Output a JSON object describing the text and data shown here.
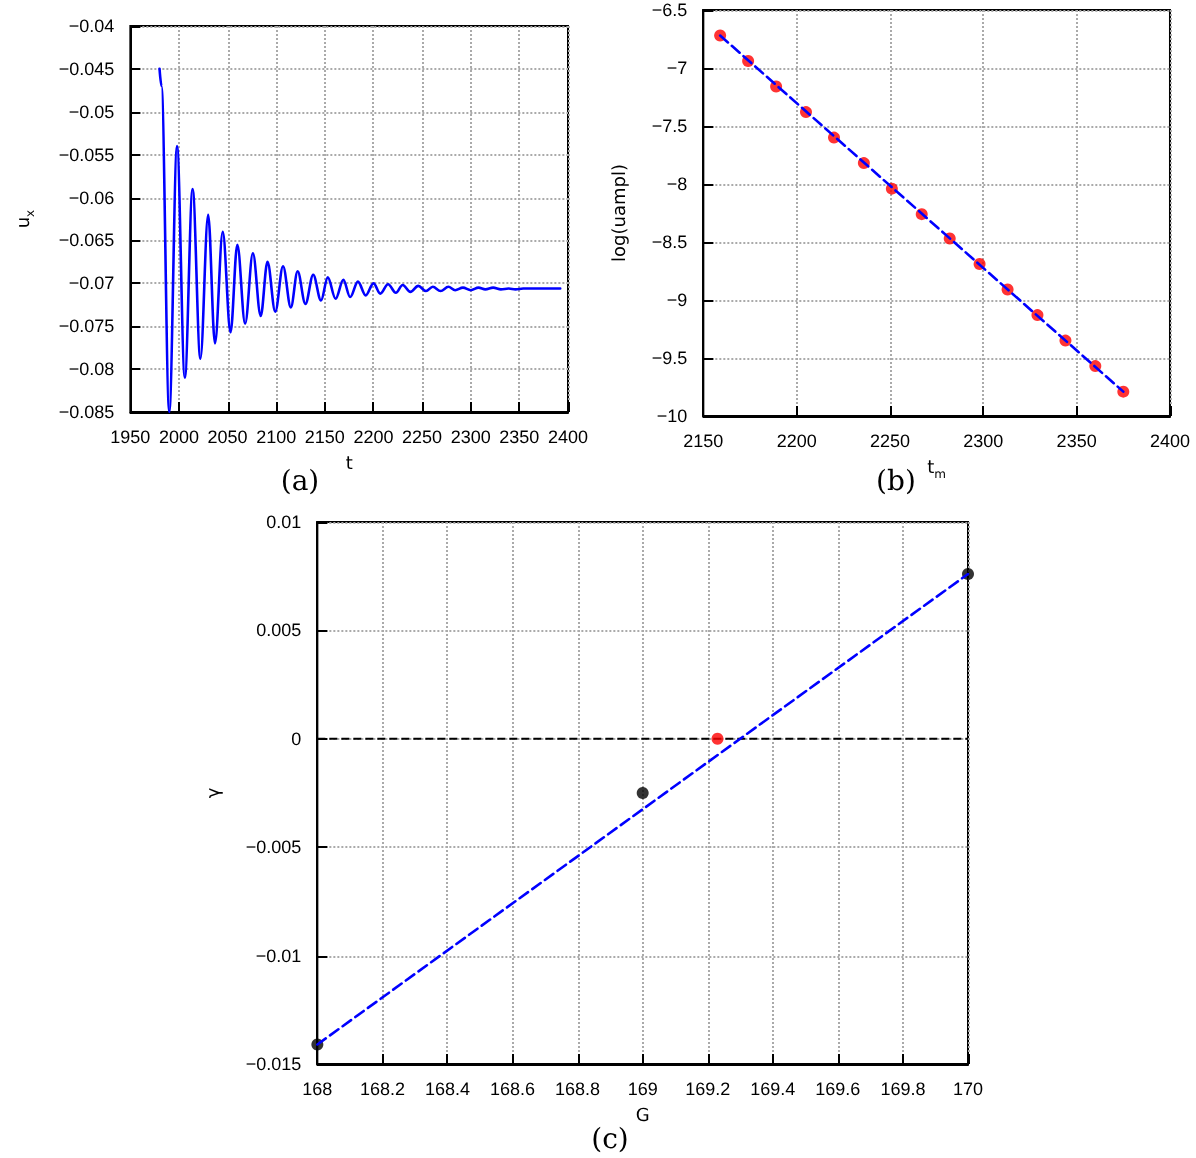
{
  "chart_data": [
    {
      "type": "line",
      "xlabel": "t",
      "ylabel": "u$_{x}$",
      "annotations": [
        "(a)"
      ],
      "xlim": [
        1950,
        2400
      ],
      "xticks": [
        1950,
        2000,
        2050,
        2100,
        2150,
        2200,
        2250,
        2300,
        2350,
        2400
      ],
      "ylim": [
        -0.085,
        -0.04
      ],
      "yticks": [
        -0.085,
        -0.08,
        -0.075,
        -0.07,
        -0.065,
        -0.06,
        -0.055,
        -0.05,
        -0.045,
        -0.04
      ],
      "grid": true,
      "marker": "none",
      "line_style": "solid",
      "series": [
        {
          "color": "#0000ff",
          "x": [
            1980,
            1982,
            1990,
            1998,
            2006,
            2014,
            2022,
            2030,
            2037,
            2045,
            2053,
            2060,
            2068,
            2076,
            2084,
            2091,
            2099,
            2107,
            2115,
            2122,
            2130,
            2138,
            2146,
            2153,
            2161,
            2169,
            2176,
            2184,
            2192,
            2200,
            2207,
            2215,
            2223,
            2230,
            2238,
            2246,
            2254,
            2261,
            2269,
            2277,
            2284,
            2292,
            2300,
            2308,
            2315,
            2323,
            2331,
            2339,
            2346,
            2354,
            2370,
            2392
          ],
          "values": [
            -0.045,
            -0.047,
            -0.085,
            -0.054,
            -0.081,
            -0.059,
            -0.0788,
            -0.062,
            -0.077,
            -0.064,
            -0.0757,
            -0.0655,
            -0.0747,
            -0.0665,
            -0.0738,
            -0.0675,
            -0.0733,
            -0.068,
            -0.0728,
            -0.0686,
            -0.0724,
            -0.069,
            -0.072,
            -0.0693,
            -0.0718,
            -0.0696,
            -0.0716,
            -0.0698,
            -0.0714,
            -0.07,
            -0.0712,
            -0.0701,
            -0.0711,
            -0.0702,
            -0.071,
            -0.0703,
            -0.0709,
            -0.0704,
            -0.0709,
            -0.0704,
            -0.0708,
            -0.0705,
            -0.0708,
            -0.0705,
            -0.0707,
            -0.0705,
            -0.0707,
            -0.0706,
            -0.0707,
            -0.0706,
            -0.0706,
            -0.0706
          ]
        }
      ]
    },
    {
      "type": "scatter",
      "xlabel": "t$_{m}$",
      "ylabel": "log(uampl)",
      "annotations": [
        "(b)"
      ],
      "xlim": [
        2150,
        2400
      ],
      "xticks": [
        2150,
        2200,
        2250,
        2300,
        2350,
        2400
      ],
      "ylim": [
        -10,
        -6.5
      ],
      "yticks": [
        -10,
        -9.5,
        -9,
        -8.5,
        -8,
        -7.5,
        -7,
        -6.5
      ],
      "grid": true,
      "series": [
        {
          "type": "line",
          "color": "#0000ff",
          "marker": "none",
          "line_style": "dashed",
          "x": [
            2159,
            2375
          ],
          "values": [
            -6.72,
            -9.79
          ]
        },
        {
          "type": "scatter",
          "color": "#ff0000",
          "marker": "circle",
          "x": [
            2159,
            2174,
            2189,
            2205,
            2220,
            2236,
            2251,
            2267,
            2282,
            2298,
            2313,
            2329,
            2344,
            2360,
            2375
          ],
          "values": [
            -6.72,
            -6.94,
            -7.16,
            -7.38,
            -7.6,
            -7.82,
            -8.04,
            -8.26,
            -8.47,
            -8.69,
            -8.91,
            -9.13,
            -9.35,
            -9.57,
            -9.79
          ]
        }
      ]
    },
    {
      "type": "scatter",
      "xlabel": "G",
      "ylabel": "γ",
      "annotations": [
        "(c)"
      ],
      "xlim": [
        168,
        170
      ],
      "xticks": [
        168,
        168.2,
        168.4,
        168.6,
        168.8,
        169,
        169.2,
        169.4,
        169.6,
        169.8,
        170
      ],
      "ylim": [
        -0.015,
        0.01
      ],
      "yticks": [
        -0.015,
        -0.01,
        -0.005,
        0,
        0.005,
        0.01
      ],
      "grid": true,
      "ref_lines": [
        {
          "axis": "y",
          "value": 0,
          "color": "#000000",
          "line_style": "dashed"
        }
      ],
      "series": [
        {
          "type": "line",
          "color": "#0000ff",
          "marker": "none",
          "line_style": "dashed",
          "x": [
            168,
            170
          ],
          "values": [
            -0.0141,
            0.0076
          ]
        },
        {
          "type": "scatter",
          "color": "#000000",
          "marker": "circle",
          "x": [
            168,
            169,
            170
          ],
          "values": [
            -0.0141,
            -0.0025,
            0.0076
          ]
        },
        {
          "type": "scatter",
          "color": "#ff0000",
          "marker": "circle",
          "x": [
            169.23
          ],
          "values": [
            0
          ]
        }
      ]
    }
  ]
}
